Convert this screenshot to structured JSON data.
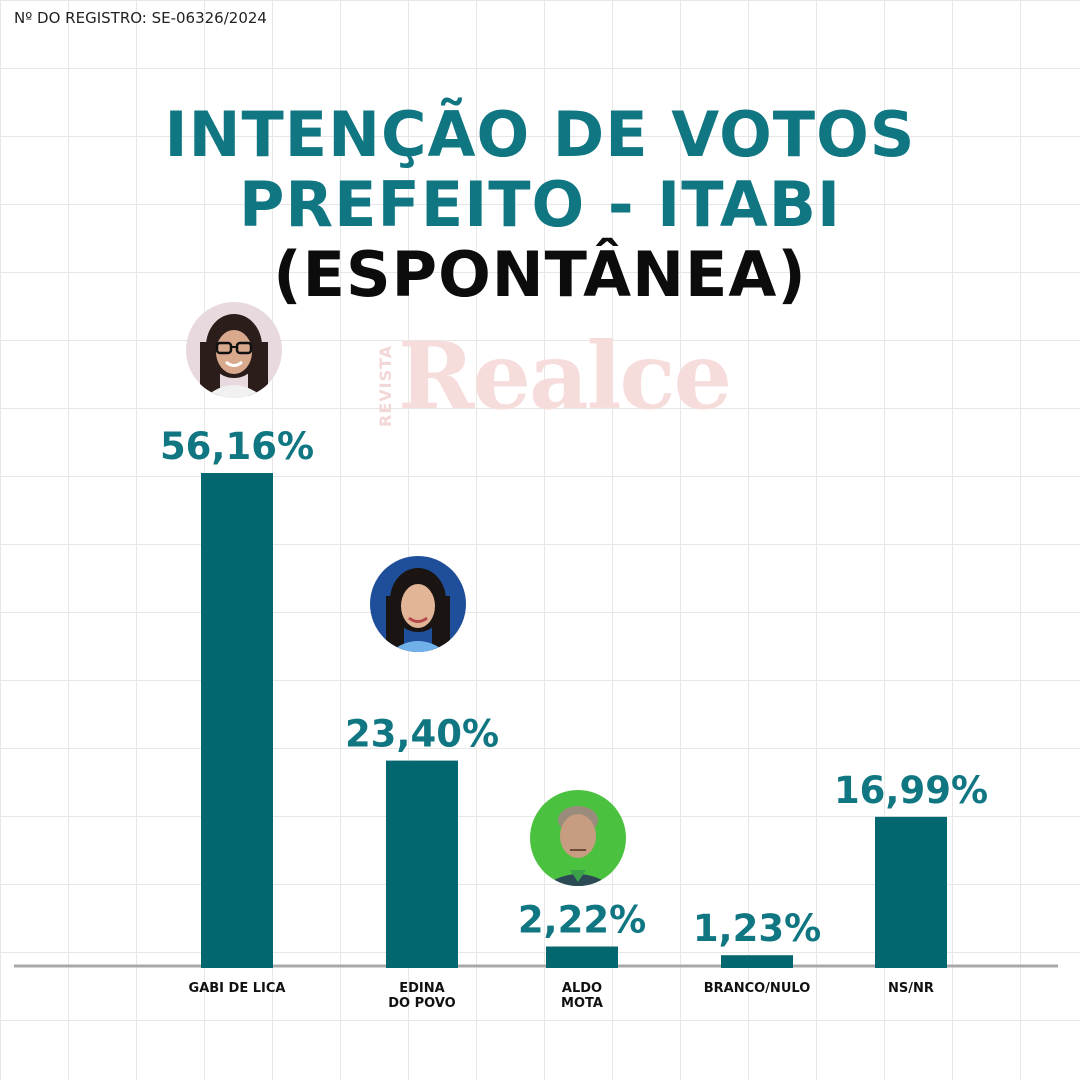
{
  "registro": "Nº DO REGISTRO: SE-06326/2024",
  "title_lines": [
    "INTENÇÃO DE VOTOS",
    "PREFEITO - ITABI",
    "(ESPONTÂNEA)"
  ],
  "watermark": {
    "small": "REVISTA",
    "main": "Realce"
  },
  "colors": {
    "accent": "#0f7682",
    "bar": "#03676f",
    "title_dark": "#0c0c0c"
  },
  "chart_data": {
    "type": "bar",
    "categories": [
      "GABI DE LICA",
      "EDINA\nDO POVO",
      "ALDO\nMOTA",
      "BRANCO/NULO",
      "NS/NR"
    ],
    "values": [
      56.16,
      23.4,
      2.22,
      1.23,
      16.99
    ],
    "value_labels": [
      "56,16%",
      "23,40%",
      "2,22%",
      "1,23%",
      "16,99%"
    ],
    "unit": "%",
    "ylim": [
      0,
      56.16
    ],
    "grid": true,
    "legend": "none",
    "photos": [
      "candidate-photo",
      "candidate-photo",
      "candidate-photo",
      null,
      null
    ]
  }
}
